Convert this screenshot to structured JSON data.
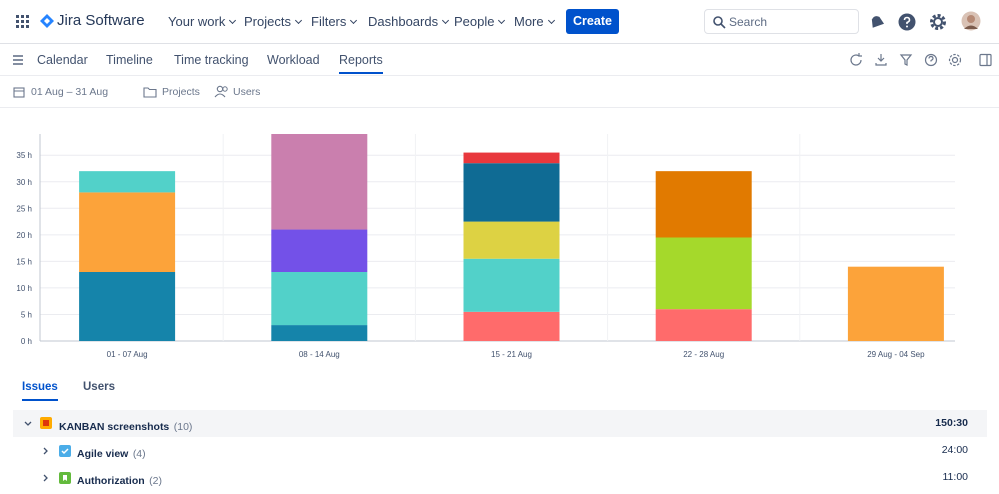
{
  "nav": {
    "brand": "Jira Software",
    "items": [
      "Your work",
      "Projects",
      "Filters",
      "Dashboards",
      "People",
      "More"
    ],
    "create": "Create",
    "search": "Search"
  },
  "tabs": {
    "items": [
      "Calendar",
      "Timeline",
      "Time tracking",
      "Workload",
      "Reports"
    ],
    "active": 4
  },
  "filters": {
    "date": "01 Aug – 31 Aug",
    "projects": "Projects",
    "users": "Users"
  },
  "chart_data": {
    "type": "stacked-bar",
    "categories": [
      "01 - 07 Aug",
      "08 - 14 Aug",
      "15 - 21 Aug",
      "22 - 28 Aug",
      "29 Aug - 04 Sep"
    ],
    "series": [
      {
        "values": [
          13,
          3,
          5.5,
          6,
          14
        ],
        "colors": [
          "#1584aa",
          "#1584aa",
          "#ff6b6b",
          "#ff6b6b",
          "#fca33a"
        ]
      },
      {
        "values": [
          15,
          10,
          10,
          13.5,
          null
        ],
        "colors": [
          "#fca33a",
          "#52d1c9",
          "#52d1c9",
          "#a5d92b",
          null
        ]
      },
      {
        "values": [
          4,
          8,
          7,
          12.5,
          null
        ],
        "colors": [
          "#52d1c9",
          "#7351e8",
          "#ddd243",
          "#e17a00",
          null
        ]
      },
      {
        "values": [
          null,
          18,
          11,
          null,
          null
        ],
        "colors": [
          null,
          "#ca7fae",
          "#0f6b94",
          null,
          null
        ]
      },
      {
        "values": [
          null,
          null,
          2,
          null,
          null
        ],
        "colors": [
          null,
          null,
          "#e8383d",
          null,
          null
        ]
      }
    ],
    "ylim": [
      0,
      39
    ],
    "yticks": [
      {
        "value": 0,
        "label": "0 h"
      },
      {
        "value": 5,
        "label": "5 h"
      },
      {
        "value": 10,
        "label": "10 h"
      },
      {
        "value": 15,
        "label": "15 h"
      },
      {
        "value": 20,
        "label": "20 h"
      },
      {
        "value": 25,
        "label": "25 h"
      },
      {
        "value": 30,
        "label": "30 h"
      },
      {
        "value": 35,
        "label": "35 h"
      }
    ],
    "grid": true
  },
  "report_tabs": {
    "items": [
      "Issues",
      "Users"
    ],
    "active": 0
  },
  "table": {
    "rows": [
      {
        "name": "KANBAN screenshots",
        "count": "(10)",
        "total": "150:30"
      },
      {
        "name": "Agile view",
        "count": "(4)",
        "total": "24:00"
      },
      {
        "name": "Authorization",
        "count": "(2)",
        "total": "11:00"
      }
    ]
  }
}
